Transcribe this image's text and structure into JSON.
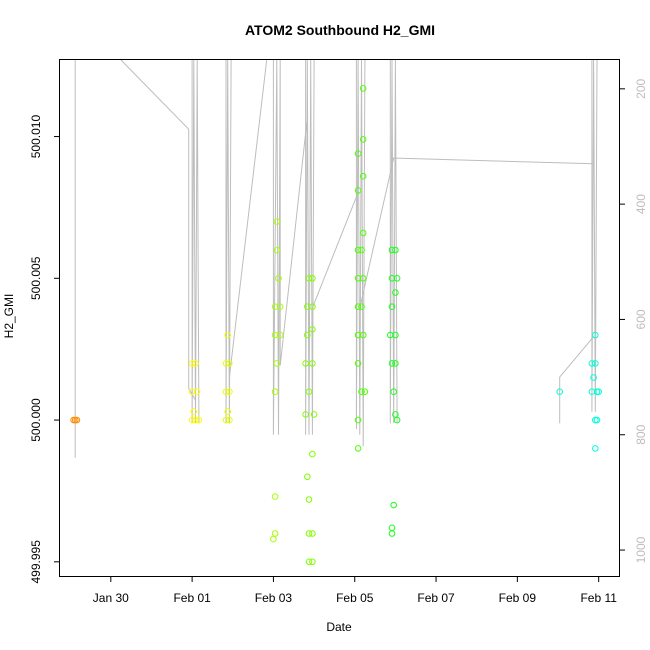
{
  "chart_data": {
    "type": "scatter",
    "title": "ATOM2 Southbound H2_GMI",
    "xlabel": "Date",
    "ylabel": "H2_GMI",
    "x_ticks": [
      {
        "date": "2016-01-30",
        "label": "Jan 30"
      },
      {
        "date": "2016-02-01",
        "label": "Feb 01"
      },
      {
        "date": "2016-02-03",
        "label": "Feb 03"
      },
      {
        "date": "2016-02-05",
        "label": "Feb 05"
      },
      {
        "date": "2016-02-07",
        "label": "Feb 07"
      },
      {
        "date": "2016-02-09",
        "label": "Feb 09"
      },
      {
        "date": "2016-02-11",
        "label": "Feb 11"
      }
    ],
    "xlim": [
      "2016-01-28T18:00",
      "2016-02-11T12:00"
    ],
    "ylim": [
      499.9945,
      500.0127
    ],
    "y_ticks": [
      {
        "value": 499.995,
        "label": "499.995"
      },
      {
        "value": 500.0,
        "label": "500.000"
      },
      {
        "value": 500.005,
        "label": "500.005"
      },
      {
        "value": 500.01,
        "label": "500.010"
      }
    ],
    "y2_label": "",
    "y2_lim": [
      1045,
      150
    ],
    "y2_ticks": [
      200,
      400,
      600,
      800,
      1000
    ],
    "grid": false,
    "colors": {
      "axis": "#000000",
      "pressure_line": "#bdbdbd",
      "y2_tick_label": "#bdbdbd"
    },
    "legend": "none",
    "points": [
      {
        "t": "2016-01-29T02:00",
        "y": 500.0,
        "c": "#ff8c00"
      },
      {
        "t": "2016-01-29T03:00",
        "y": 500.0,
        "c": "#ff8c00"
      },
      {
        "t": "2016-01-29T04:00",
        "y": 500.0,
        "c": "#ff8c00"
      },
      {
        "t": "2016-02-01T00:00",
        "y": 500.002,
        "c": "#ffff00"
      },
      {
        "t": "2016-02-01T02:00",
        "y": 500.002,
        "c": "#ffff00"
      },
      {
        "t": "2016-02-01T00:00",
        "y": 500.001,
        "c": "#ffff00"
      },
      {
        "t": "2016-02-01T03:00",
        "y": 500.001,
        "c": "#ffff00"
      },
      {
        "t": "2016-02-01T00:00",
        "y": 500.0,
        "c": "#ffff00"
      },
      {
        "t": "2016-02-01T02:00",
        "y": 500.0,
        "c": "#ffff00"
      },
      {
        "t": "2016-02-01T04:00",
        "y": 500.0,
        "c": "#ffff00"
      },
      {
        "t": "2016-02-01T01:00",
        "y": 500.0003,
        "c": "#ffff00"
      },
      {
        "t": "2016-02-01T20:00",
        "y": 500.002,
        "c": "#eaff00"
      },
      {
        "t": "2016-02-01T22:00",
        "y": 500.002,
        "c": "#eaff00"
      },
      {
        "t": "2016-02-01T21:00",
        "y": 500.003,
        "c": "#eaff00"
      },
      {
        "t": "2016-02-01T20:00",
        "y": 500.001,
        "c": "#eaff00"
      },
      {
        "t": "2016-02-01T22:00",
        "y": 500.001,
        "c": "#eaff00"
      },
      {
        "t": "2016-02-01T20:00",
        "y": 500.0,
        "c": "#eaff00"
      },
      {
        "t": "2016-02-01T22:00",
        "y": 500.0,
        "c": "#eaff00"
      },
      {
        "t": "2016-02-01T21:00",
        "y": 500.0003,
        "c": "#eaff00"
      },
      {
        "t": "2016-02-03T02:00",
        "y": 500.007,
        "c": "#a6ff00"
      },
      {
        "t": "2016-02-03T02:00",
        "y": 500.006,
        "c": "#a6ff00"
      },
      {
        "t": "2016-02-03T03:00",
        "y": 500.005,
        "c": "#a6ff00"
      },
      {
        "t": "2016-02-03T01:00",
        "y": 500.004,
        "c": "#a6ff00"
      },
      {
        "t": "2016-02-03T04:00",
        "y": 500.004,
        "c": "#a6ff00"
      },
      {
        "t": "2016-02-03T01:00",
        "y": 500.003,
        "c": "#a6ff00"
      },
      {
        "t": "2016-02-03T04:00",
        "y": 500.003,
        "c": "#a6ff00"
      },
      {
        "t": "2016-02-03T02:00",
        "y": 500.002,
        "c": "#a6ff00"
      },
      {
        "t": "2016-02-03T01:00",
        "y": 500.001,
        "c": "#a6ff00"
      },
      {
        "t": "2016-02-03T01:00",
        "y": 499.9973,
        "c": "#a6ff00"
      },
      {
        "t": "2016-02-03T01:00",
        "y": 499.996,
        "c": "#a6ff00"
      },
      {
        "t": "2016-02-03T00:00",
        "y": 499.9958,
        "c": "#a6ff00"
      },
      {
        "t": "2016-02-03T21:00",
        "y": 500.005,
        "c": "#7fff00"
      },
      {
        "t": "2016-02-03T23:00",
        "y": 500.005,
        "c": "#7fff00"
      },
      {
        "t": "2016-02-03T20:00",
        "y": 500.004,
        "c": "#7fff00"
      },
      {
        "t": "2016-02-03T23:00",
        "y": 500.004,
        "c": "#7fff00"
      },
      {
        "t": "2016-02-03T20:00",
        "y": 500.003,
        "c": "#7fff00"
      },
      {
        "t": "2016-02-03T23:00",
        "y": 500.0032,
        "c": "#7fff00"
      },
      {
        "t": "2016-02-03T19:00",
        "y": 500.002,
        "c": "#7fff00"
      },
      {
        "t": "2016-02-03T23:00",
        "y": 500.002,
        "c": "#7fff00"
      },
      {
        "t": "2016-02-03T21:00",
        "y": 500.001,
        "c": "#7fff00"
      },
      {
        "t": "2016-02-03T19:00",
        "y": 500.0002,
        "c": "#7fff00"
      },
      {
        "t": "2016-02-04T00:00",
        "y": 500.0002,
        "c": "#7fff00"
      },
      {
        "t": "2016-02-03T23:00",
        "y": 499.9988,
        "c": "#7fff00"
      },
      {
        "t": "2016-02-03T20:00",
        "y": 499.998,
        "c": "#7fff00"
      },
      {
        "t": "2016-02-03T21:00",
        "y": 499.9972,
        "c": "#7fff00"
      },
      {
        "t": "2016-02-03T21:00",
        "y": 499.996,
        "c": "#7fff00"
      },
      {
        "t": "2016-02-03T23:00",
        "y": 499.996,
        "c": "#7fff00"
      },
      {
        "t": "2016-02-03T21:00",
        "y": 499.995,
        "c": "#7fff00"
      },
      {
        "t": "2016-02-03T23:00",
        "y": 499.995,
        "c": "#7fff00"
      },
      {
        "t": "2016-02-05T05:00",
        "y": 500.0117,
        "c": "#4cff00"
      },
      {
        "t": "2016-02-05T05:00",
        "y": 500.0099,
        "c": "#4cff00"
      },
      {
        "t": "2016-02-05T02:00",
        "y": 500.0094,
        "c": "#4cff00"
      },
      {
        "t": "2016-02-05T05:00",
        "y": 500.0086,
        "c": "#4cff00"
      },
      {
        "t": "2016-02-05T02:00",
        "y": 500.0081,
        "c": "#4cff00"
      },
      {
        "t": "2016-02-05T05:00",
        "y": 500.0066,
        "c": "#4cff00"
      },
      {
        "t": "2016-02-05T02:00",
        "y": 500.006,
        "c": "#4cff00"
      },
      {
        "t": "2016-02-05T04:00",
        "y": 500.006,
        "c": "#4cff00"
      },
      {
        "t": "2016-02-05T02:00",
        "y": 500.005,
        "c": "#4cff00"
      },
      {
        "t": "2016-02-05T05:00",
        "y": 500.005,
        "c": "#4cff00"
      },
      {
        "t": "2016-02-05T02:00",
        "y": 500.004,
        "c": "#4cff00"
      },
      {
        "t": "2016-02-05T04:00",
        "y": 500.004,
        "c": "#4cff00"
      },
      {
        "t": "2016-02-05T02:00",
        "y": 500.003,
        "c": "#4cff00"
      },
      {
        "t": "2016-02-05T05:00",
        "y": 500.003,
        "c": "#4cff00"
      },
      {
        "t": "2016-02-05T02:00",
        "y": 500.002,
        "c": "#4cff00"
      },
      {
        "t": "2016-02-05T04:00",
        "y": 500.001,
        "c": "#4cff00"
      },
      {
        "t": "2016-02-05T06:00",
        "y": 500.001,
        "c": "#4cff00"
      },
      {
        "t": "2016-02-05T02:00",
        "y": 500.0,
        "c": "#4cff00"
      },
      {
        "t": "2016-02-05T02:00",
        "y": 499.999,
        "c": "#4cff00"
      },
      {
        "t": "2016-02-05T22:00",
        "y": 500.006,
        "c": "#1aff1a"
      },
      {
        "t": "2016-02-06T00:00",
        "y": 500.006,
        "c": "#1aff1a"
      },
      {
        "t": "2016-02-05T22:00",
        "y": 500.005,
        "c": "#1aff1a"
      },
      {
        "t": "2016-02-06T01:00",
        "y": 500.005,
        "c": "#1aff1a"
      },
      {
        "t": "2016-02-05T22:00",
        "y": 500.004,
        "c": "#1aff1a"
      },
      {
        "t": "2016-02-06T00:00",
        "y": 500.0045,
        "c": "#1aff1a"
      },
      {
        "t": "2016-02-05T21:00",
        "y": 500.003,
        "c": "#1aff1a"
      },
      {
        "t": "2016-02-06T00:00",
        "y": 500.003,
        "c": "#1aff1a"
      },
      {
        "t": "2016-02-05T22:00",
        "y": 500.002,
        "c": "#1aff1a"
      },
      {
        "t": "2016-02-06T00:00",
        "y": 500.002,
        "c": "#1aff1a"
      },
      {
        "t": "2016-02-05T23:00",
        "y": 500.001,
        "c": "#1aff1a"
      },
      {
        "t": "2016-02-06T00:00",
        "y": 500.0002,
        "c": "#1aff1a"
      },
      {
        "t": "2016-02-06T01:00",
        "y": 500.0,
        "c": "#1aff1a"
      },
      {
        "t": "2016-02-05T23:00",
        "y": 499.997,
        "c": "#1aff1a"
      },
      {
        "t": "2016-02-05T22:00",
        "y": 499.9962,
        "c": "#1aff1a"
      },
      {
        "t": "2016-02-05T22:00",
        "y": 499.996,
        "c": "#1aff1a"
      },
      {
        "t": "2016-02-10T01:00",
        "y": 500.001,
        "c": "#00ffc8"
      },
      {
        "t": "2016-02-10T20:00",
        "y": 500.002,
        "c": "#00ffd8"
      },
      {
        "t": "2016-02-10T22:00",
        "y": 500.002,
        "c": "#00ffd8"
      },
      {
        "t": "2016-02-10T22:00",
        "y": 500.003,
        "c": "#00ffd8"
      },
      {
        "t": "2016-02-10T20:00",
        "y": 500.001,
        "c": "#00ffd8"
      },
      {
        "t": "2016-02-10T23:00",
        "y": 500.001,
        "c": "#00ffd8"
      },
      {
        "t": "2016-02-11T00:00",
        "y": 500.001,
        "c": "#00ffd8"
      },
      {
        "t": "2016-02-10T21:00",
        "y": 500.0015,
        "c": "#00ffd8"
      },
      {
        "t": "2016-02-10T22:00",
        "y": 500.0,
        "c": "#00ffd8"
      },
      {
        "t": "2016-02-10T23:00",
        "y": 500.0,
        "c": "#00ffd8"
      },
      {
        "t": "2016-02-10T22:00",
        "y": 499.999,
        "c": "#00ffd8"
      }
    ],
    "pressure_profiles": [
      {
        "points": [
          [
            "2016-01-29T03:00",
            140
          ],
          [
            "2016-01-29T03:00",
            840
          ],
          [
            "2016-01-29T03:00",
            140
          ]
        ]
      },
      {
        "points": [
          [
            "2016-01-30T06:00",
            140
          ],
          [
            "2016-01-31T22:00",
            270
          ],
          [
            "2016-01-31T22:00",
            720
          ],
          [
            "2016-02-01T02:00",
            740
          ]
        ]
      },
      {
        "points": [
          [
            "2016-02-01T00:00",
            140
          ],
          [
            "2016-02-01T00:00",
            780
          ],
          [
            "2016-02-01T01:00",
            140
          ],
          [
            "2016-02-01T02:00",
            780
          ],
          [
            "2016-02-01T03:00",
            140
          ],
          [
            "2016-02-01T04:00",
            780
          ]
        ]
      },
      {
        "points": [
          [
            "2016-02-01T20:00",
            140
          ],
          [
            "2016-02-01T20:00",
            780
          ],
          [
            "2016-02-01T21:00",
            140
          ],
          [
            "2016-02-01T22:00",
            780
          ],
          [
            "2016-02-01T23:00",
            140
          ]
        ]
      },
      {
        "points": [
          [
            "2016-02-01T22:00",
            700
          ],
          [
            "2016-02-02T20:00",
            140
          ]
        ]
      },
      {
        "points": [
          [
            "2016-02-03T00:00",
            140
          ],
          [
            "2016-02-03T00:00",
            800
          ],
          [
            "2016-02-03T02:00",
            140
          ],
          [
            "2016-02-03T03:00",
            800
          ],
          [
            "2016-02-03T04:00",
            140
          ],
          [
            "2016-02-03T04:00",
            680
          ],
          [
            "2016-02-03T20:00",
            250
          ]
        ]
      },
      {
        "points": [
          [
            "2016-02-03T19:00",
            140
          ],
          [
            "2016-02-03T19:00",
            800
          ],
          [
            "2016-02-03T20:00",
            140
          ],
          [
            "2016-02-03T21:00",
            800
          ],
          [
            "2016-02-03T22:00",
            140
          ],
          [
            "2016-02-03T23:00",
            800
          ],
          [
            "2016-02-04T00:00",
            140
          ]
        ]
      },
      {
        "points": [
          [
            "2016-02-03T23:00",
            580
          ],
          [
            "2016-02-05T02:00",
            380
          ]
        ]
      },
      {
        "points": [
          [
            "2016-02-05T01:00",
            140
          ],
          [
            "2016-02-05T01:00",
            790
          ],
          [
            "2016-02-05T02:00",
            140
          ],
          [
            "2016-02-05T03:00",
            800
          ],
          [
            "2016-02-05T04:00",
            140
          ],
          [
            "2016-02-05T05:00",
            820
          ],
          [
            "2016-02-05T06:00",
            140
          ]
        ]
      },
      {
        "points": [
          [
            "2016-02-05T03:00",
            580
          ],
          [
            "2016-02-05T23:00",
            320
          ]
        ]
      },
      {
        "points": [
          [
            "2016-02-05T21:00",
            140
          ],
          [
            "2016-02-05T21:00",
            780
          ],
          [
            "2016-02-05T22:00",
            140
          ],
          [
            "2016-02-05T23:00",
            780
          ],
          [
            "2016-02-06T00:00",
            140
          ],
          [
            "2016-02-06T01:00",
            780
          ]
        ]
      },
      {
        "points": [
          [
            "2016-02-05T22:00",
            320
          ],
          [
            "2016-02-10T21:00",
            330
          ]
        ]
      },
      {
        "points": [
          [
            "2016-02-10T01:00",
            780
          ],
          [
            "2016-02-10T01:00",
            700
          ],
          [
            "2016-02-10T21:00",
            630
          ]
        ]
      },
      {
        "points": [
          [
            "2016-02-10T20:00",
            140
          ],
          [
            "2016-02-10T20:00",
            760
          ],
          [
            "2016-02-10T21:00",
            140
          ],
          [
            "2016-02-10T22:00",
            760
          ],
          [
            "2016-02-10T23:00",
            140
          ]
        ]
      }
    ]
  }
}
